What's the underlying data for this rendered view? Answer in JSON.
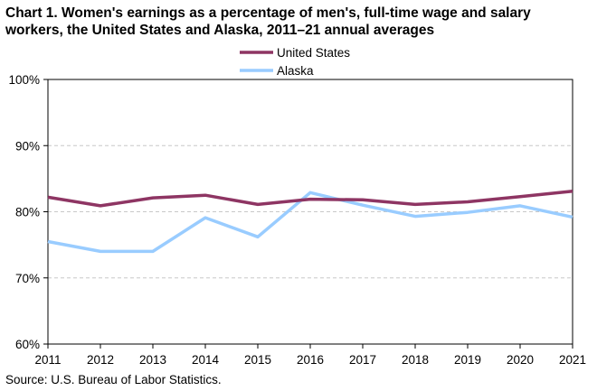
{
  "title_line1": "Chart 1. Women's earnings as a percentage of men's, full-time wage and salary",
  "title_line2": "workers, the United States and Alaska,  2011–21  annual averages",
  "source": "Source:  U.S. Bureau of Labor Statistics.",
  "chart_data": {
    "type": "line",
    "x": [
      2011,
      2012,
      2013,
      2014,
      2015,
      2016,
      2017,
      2018,
      2019,
      2020,
      2021
    ],
    "ylim": [
      60,
      100
    ],
    "yticks": [
      60,
      70,
      80,
      90,
      100
    ],
    "ytick_labels": [
      "60%",
      "70%",
      "80%",
      "90%",
      "100%"
    ],
    "xtick_labels": [
      "2011",
      "2012",
      "2013",
      "2014",
      "2015",
      "2016",
      "2017",
      "2018",
      "2019",
      "2020",
      "2021"
    ],
    "grid": true,
    "legend_position": "top-center",
    "series": [
      {
        "name": "United States",
        "color": "#8E3563",
        "values": [
          82.2,
          80.9,
          82.1,
          82.5,
          81.1,
          81.9,
          81.8,
          81.1,
          81.5,
          82.3,
          83.1
        ]
      },
      {
        "name": "Alaska",
        "color": "#99CCFF",
        "values": [
          75.5,
          74.0,
          74.0,
          79.1,
          76.2,
          82.9,
          81.0,
          79.3,
          79.9,
          80.9,
          79.2
        ]
      }
    ]
  }
}
